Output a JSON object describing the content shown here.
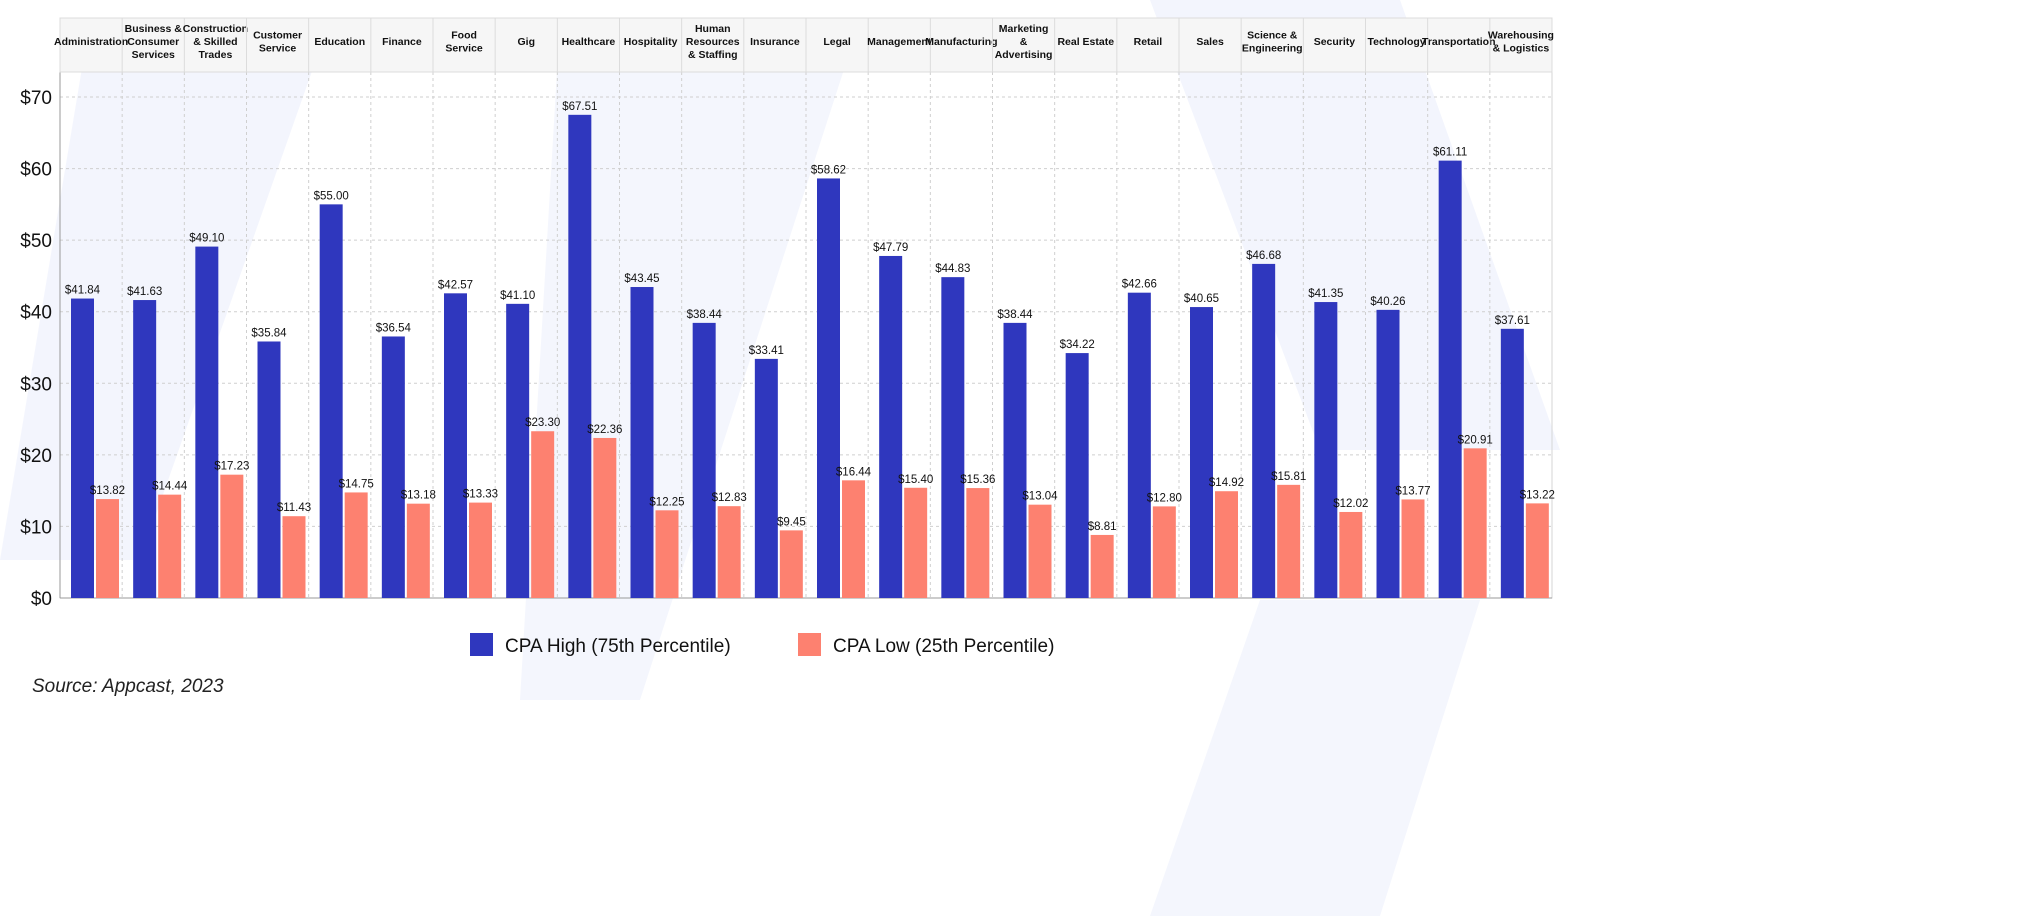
{
  "chart_data": {
    "type": "bar",
    "title": "",
    "xlabel": "",
    "ylabel": "",
    "ylim": [
      0,
      70
    ],
    "yticks": [
      "$0",
      "$10",
      "$20",
      "$30",
      "$40",
      "$50",
      "$60",
      "$70"
    ],
    "ytick_values": [
      0,
      10,
      20,
      30,
      40,
      50,
      60,
      70
    ],
    "grid": true,
    "legend_placement": "bottom",
    "categories": [
      "Administration",
      "Business & Consumer Services",
      "Construction & Skilled Trades",
      "Customer Service",
      "Education",
      "Finance",
      "Food Service",
      "Gig",
      "Healthcare",
      "Hospitality",
      "Human Resources & Staffing",
      "Insurance",
      "Legal",
      "Management",
      "Manufacturing",
      "Marketing & Advertising",
      "Real Estate",
      "Retail",
      "Sales",
      "Science & Engineering",
      "Security",
      "Technology",
      "Transportation",
      "Warehousing & Logistics"
    ],
    "category_lines": [
      [
        "Administration"
      ],
      [
        "Business &",
        "Consumer",
        "Services"
      ],
      [
        "Construction",
        "& Skilled",
        "Trades"
      ],
      [
        "Customer",
        "Service"
      ],
      [
        "Education"
      ],
      [
        "Finance"
      ],
      [
        "Food",
        "Service"
      ],
      [
        "Gig"
      ],
      [
        "Healthcare"
      ],
      [
        "Hospitality"
      ],
      [
        "Human",
        "Resources",
        "& Staffing"
      ],
      [
        "Insurance"
      ],
      [
        "Legal"
      ],
      [
        "Management"
      ],
      [
        "Manufacturing"
      ],
      [
        "Marketing",
        "&",
        "Advertising"
      ],
      [
        "Real Estate"
      ],
      [
        "Retail"
      ],
      [
        "Sales"
      ],
      [
        "Science &",
        "Engineering"
      ],
      [
        "Security"
      ],
      [
        "Technology"
      ],
      [
        "Transportation"
      ],
      [
        "Warehousing",
        "& Logistics"
      ]
    ],
    "series": [
      {
        "name": "CPA High (75th Percentile)",
        "color": "#2f37be",
        "values": [
          41.84,
          41.63,
          49.1,
          35.84,
          55.0,
          36.54,
          42.57,
          41.1,
          67.51,
          43.45,
          38.44,
          33.41,
          58.62,
          47.79,
          44.83,
          38.44,
          34.22,
          42.66,
          40.65,
          46.68,
          41.35,
          40.26,
          61.11,
          37.61
        ],
        "labels": [
          "$41.84",
          "$41.63",
          "$49.10",
          "$35.84",
          "$55.00",
          "$36.54",
          "$42.57",
          "$41.10",
          "$67.51",
          "$43.45",
          "$38.44",
          "$33.41",
          "$58.62",
          "$47.79",
          "$44.83",
          "$38.44",
          "$34.22",
          "$42.66",
          "$40.65",
          "$46.68",
          "$41.35",
          "$40.26",
          "$61.11",
          "$37.61"
        ]
      },
      {
        "name": "CPA Low (25th Percentile)",
        "color": "#fd8170",
        "values": [
          13.82,
          14.44,
          17.23,
          11.43,
          14.75,
          13.18,
          13.33,
          23.3,
          22.36,
          12.25,
          12.83,
          9.45,
          16.44,
          15.4,
          15.36,
          13.04,
          8.81,
          12.8,
          14.92,
          15.81,
          12.02,
          13.77,
          20.91,
          13.22
        ],
        "labels": [
          "$13.82",
          "$14.44",
          "$17.23",
          "$11.43",
          "$14.75",
          "$13.18",
          "$13.33",
          "$23.30",
          "$22.36",
          "$12.25",
          "$12.83",
          "$9.45",
          "$16.44",
          "$15.40",
          "$15.36",
          "$13.04",
          "$8.81",
          "$12.80",
          "$14.92",
          "$15.81",
          "$12.02",
          "$13.77",
          "$20.91",
          "$13.22"
        ]
      }
    ]
  },
  "source": "Source: Appcast, 2023"
}
